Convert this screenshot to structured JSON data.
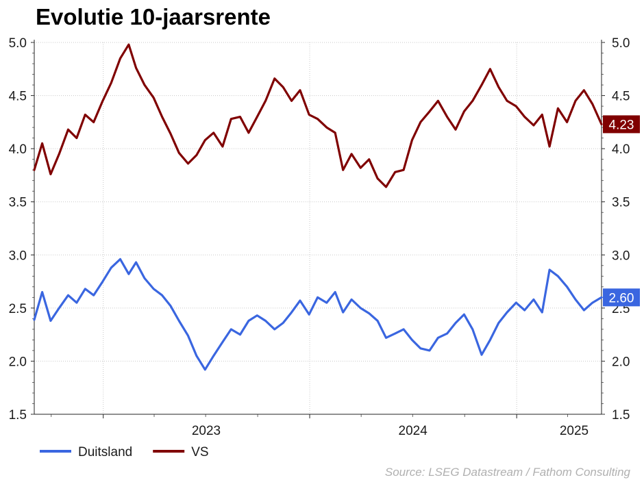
{
  "chart_data": {
    "type": "line",
    "title": "Evolutie 10-jaarsrente",
    "source": "Source: LSEG Datastream / Fathom Consulting",
    "x_range": [
      "2022-09-01",
      "2025-05-31"
    ],
    "ylim": [
      1.5,
      5.0
    ],
    "yticks": [
      "1.5",
      "2.0",
      "2.5",
      "3.0",
      "3.5",
      "4.0",
      "4.5",
      "5.0"
    ],
    "xticks": [
      {
        "label": "2023",
        "date": "2023-01-01"
      },
      {
        "label": "2024",
        "date": "2024-01-01"
      },
      {
        "label": "2025",
        "date": "2025-01-01"
      }
    ],
    "grid": true,
    "legend_position": "bottom-left",
    "series": [
      {
        "name": "Duitsland",
        "color": "#3a66e0",
        "end_label": "2.60",
        "points": [
          [
            "2022-09-01",
            2.39
          ],
          [
            "2022-09-15",
            2.65
          ],
          [
            "2022-09-30",
            2.38
          ],
          [
            "2022-10-15",
            2.5
          ],
          [
            "2022-10-31",
            2.62
          ],
          [
            "2022-11-15",
            2.55
          ],
          [
            "2022-11-30",
            2.68
          ],
          [
            "2022-12-15",
            2.62
          ],
          [
            "2022-12-31",
            2.75
          ],
          [
            "2023-01-15",
            2.88
          ],
          [
            "2023-01-31",
            2.96
          ],
          [
            "2023-02-15",
            2.82
          ],
          [
            "2023-02-28",
            2.93
          ],
          [
            "2023-03-15",
            2.78
          ],
          [
            "2023-03-31",
            2.68
          ],
          [
            "2023-04-15",
            2.62
          ],
          [
            "2023-04-30",
            2.52
          ],
          [
            "2023-05-15",
            2.38
          ],
          [
            "2023-05-31",
            2.24
          ],
          [
            "2023-06-15",
            2.05
          ],
          [
            "2023-06-30",
            1.92
          ],
          [
            "2023-07-15",
            2.05
          ],
          [
            "2023-07-31",
            2.18
          ],
          [
            "2023-08-15",
            2.3
          ],
          [
            "2023-08-31",
            2.25
          ],
          [
            "2023-09-15",
            2.38
          ],
          [
            "2023-09-30",
            2.43
          ],
          [
            "2023-10-15",
            2.38
          ],
          [
            "2023-10-31",
            2.3
          ],
          [
            "2023-11-15",
            2.36
          ],
          [
            "2023-11-30",
            2.46
          ],
          [
            "2023-12-15",
            2.57
          ],
          [
            "2023-12-31",
            2.44
          ],
          [
            "2024-01-15",
            2.6
          ],
          [
            "2024-01-31",
            2.55
          ],
          [
            "2024-02-15",
            2.65
          ],
          [
            "2024-02-29",
            2.46
          ],
          [
            "2024-03-15",
            2.58
          ],
          [
            "2024-03-31",
            2.5
          ],
          [
            "2024-04-15",
            2.45
          ],
          [
            "2024-04-30",
            2.38
          ],
          [
            "2024-05-15",
            2.22
          ],
          [
            "2024-05-31",
            2.26
          ],
          [
            "2024-06-15",
            2.3
          ],
          [
            "2024-06-30",
            2.2
          ],
          [
            "2024-07-15",
            2.12
          ],
          [
            "2024-07-31",
            2.1
          ],
          [
            "2024-08-15",
            2.22
          ],
          [
            "2024-08-31",
            2.26
          ],
          [
            "2024-09-15",
            2.36
          ],
          [
            "2024-09-30",
            2.44
          ],
          [
            "2024-10-15",
            2.3
          ],
          [
            "2024-10-31",
            2.06
          ],
          [
            "2024-11-15",
            2.2
          ],
          [
            "2024-11-30",
            2.36
          ],
          [
            "2024-12-15",
            2.46
          ],
          [
            "2024-12-31",
            2.55
          ],
          [
            "2025-01-15",
            2.48
          ],
          [
            "2025-01-31",
            2.58
          ],
          [
            "2025-02-15",
            2.46
          ],
          [
            "2025-02-28",
            2.86
          ],
          [
            "2025-03-15",
            2.8
          ],
          [
            "2025-03-31",
            2.7
          ],
          [
            "2025-04-15",
            2.58
          ],
          [
            "2025-04-30",
            2.48
          ],
          [
            "2025-05-15",
            2.55
          ],
          [
            "2025-05-31",
            2.6
          ]
        ]
      },
      {
        "name": "VS",
        "color": "#800000",
        "end_label": "4.23",
        "points": [
          [
            "2022-09-01",
            3.8
          ],
          [
            "2022-09-15",
            4.05
          ],
          [
            "2022-09-30",
            3.76
          ],
          [
            "2022-10-15",
            3.95
          ],
          [
            "2022-10-31",
            4.18
          ],
          [
            "2022-11-15",
            4.1
          ],
          [
            "2022-11-30",
            4.32
          ],
          [
            "2022-12-15",
            4.25
          ],
          [
            "2022-12-31",
            4.45
          ],
          [
            "2023-01-15",
            4.62
          ],
          [
            "2023-01-31",
            4.85
          ],
          [
            "2023-02-15",
            4.98
          ],
          [
            "2023-02-28",
            4.76
          ],
          [
            "2023-03-15",
            4.6
          ],
          [
            "2023-03-31",
            4.48
          ],
          [
            "2023-04-15",
            4.3
          ],
          [
            "2023-04-30",
            4.14
          ],
          [
            "2023-05-15",
            3.96
          ],
          [
            "2023-05-31",
            3.86
          ],
          [
            "2023-06-15",
            3.94
          ],
          [
            "2023-06-30",
            4.08
          ],
          [
            "2023-07-15",
            4.15
          ],
          [
            "2023-07-31",
            4.02
          ],
          [
            "2023-08-15",
            4.28
          ],
          [
            "2023-08-31",
            4.3
          ],
          [
            "2023-09-15",
            4.15
          ],
          [
            "2023-09-30",
            4.3
          ],
          [
            "2023-10-15",
            4.45
          ],
          [
            "2023-10-31",
            4.66
          ],
          [
            "2023-11-15",
            4.58
          ],
          [
            "2023-11-30",
            4.45
          ],
          [
            "2023-12-15",
            4.55
          ],
          [
            "2023-12-31",
            4.32
          ],
          [
            "2024-01-15",
            4.28
          ],
          [
            "2024-01-31",
            4.2
          ],
          [
            "2024-02-15",
            4.15
          ],
          [
            "2024-02-29",
            3.8
          ],
          [
            "2024-03-15",
            3.95
          ],
          [
            "2024-03-31",
            3.82
          ],
          [
            "2024-04-15",
            3.9
          ],
          [
            "2024-04-30",
            3.72
          ],
          [
            "2024-05-15",
            3.64
          ],
          [
            "2024-05-31",
            3.78
          ],
          [
            "2024-06-15",
            3.8
          ],
          [
            "2024-06-30",
            4.08
          ],
          [
            "2024-07-15",
            4.25
          ],
          [
            "2024-07-31",
            4.35
          ],
          [
            "2024-08-15",
            4.45
          ],
          [
            "2024-08-31",
            4.3
          ],
          [
            "2024-09-15",
            4.18
          ],
          [
            "2024-09-30",
            4.35
          ],
          [
            "2024-10-15",
            4.45
          ],
          [
            "2024-10-31",
            4.6
          ],
          [
            "2024-11-15",
            4.75
          ],
          [
            "2024-11-30",
            4.58
          ],
          [
            "2024-12-15",
            4.45
          ],
          [
            "2024-12-31",
            4.4
          ],
          [
            "2025-01-15",
            4.3
          ],
          [
            "2025-01-31",
            4.22
          ],
          [
            "2025-02-15",
            4.32
          ],
          [
            "2025-02-28",
            4.02
          ],
          [
            "2025-03-15",
            4.38
          ],
          [
            "2025-03-31",
            4.25
          ],
          [
            "2025-04-15",
            4.45
          ],
          [
            "2025-04-30",
            4.55
          ],
          [
            "2025-05-15",
            4.42
          ],
          [
            "2025-05-31",
            4.23
          ]
        ]
      }
    ]
  }
}
